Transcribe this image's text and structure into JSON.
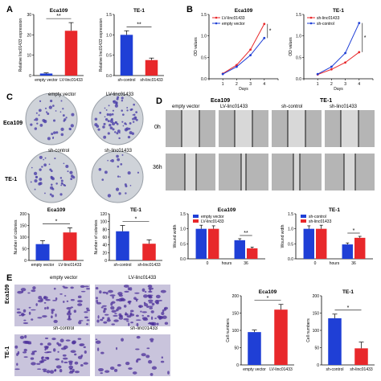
{
  "panel_letters": {
    "a": "A",
    "b": "B",
    "c": "C",
    "d": "D",
    "e": "E"
  },
  "colors": {
    "blue": "#1f3fd6",
    "red": "#e8282b",
    "photo_gray": "#b5b5b5",
    "dish": "#cfd3d9",
    "stain": "#4a3fa8"
  },
  "photo_labels": {
    "c_top_left": "empty vector",
    "c_top_right": "LV-linc01433",
    "c_row1": "Eca109",
    "c_mid_left": "sh-control",
    "c_mid_right": "sh-linc01433",
    "c_row2": "TE-1",
    "d_title_left": "Eca109",
    "d_title_right": "TE-1",
    "d_col1": "empty vector",
    "d_col2": "LV-linc01433",
    "d_col3": "sh-control",
    "d_col4": "sh-linc01433",
    "d_row1": "0h",
    "d_row2": "36h",
    "e_col1": "empty vector",
    "e_col2": "LV-linc01433",
    "e_mid1": "sh-control",
    "e_mid2": "sh-linc01433",
    "e_row1": "Eca109",
    "e_row2": "TE-1"
  },
  "chart_data": [
    {
      "id": "a1",
      "type": "bar",
      "title": "Eca109",
      "categories": [
        "empty vector",
        "LV-linc01433"
      ],
      "values": [
        1,
        22
      ],
      "errors": [
        0.3,
        4
      ],
      "colors": [
        "#1f3fd6",
        "#e8282b"
      ],
      "ylabel": "Relative linc01433 expression",
      "ylim": [
        0,
        30
      ],
      "yticks": [
        0,
        10,
        20,
        30
      ],
      "sig": "**"
    },
    {
      "id": "a2",
      "type": "bar",
      "title": "TE-1",
      "categories": [
        "sh-control",
        "sh-linc01433"
      ],
      "values": [
        1.0,
        0.38
      ],
      "errors": [
        0.1,
        0.05
      ],
      "colors": [
        "#1f3fd6",
        "#e8282b"
      ],
      "ylabel": "Relative linc01433 expression",
      "ylim": [
        0,
        1.5
      ],
      "yticks": [
        0.0,
        0.5,
        1.0,
        1.5
      ],
      "sig": "**"
    },
    {
      "id": "b1",
      "type": "line",
      "title": "Eca109",
      "x": [
        1,
        2,
        3,
        4
      ],
      "xlabel": "Days",
      "ylabel": "OD values",
      "ylim": [
        0,
        1.5
      ],
      "yticks": [
        0.0,
        0.5,
        1.0,
        1.5
      ],
      "series": [
        {
          "name": "LV-linc01433",
          "color": "#e8282b",
          "values": [
            0.12,
            0.32,
            0.68,
            1.28
          ]
        },
        {
          "name": "empty vector",
          "color": "#1f3fd6",
          "values": [
            0.11,
            0.28,
            0.55,
            0.95
          ]
        }
      ],
      "sig": "*"
    },
    {
      "id": "b2",
      "type": "line",
      "title": "TE-1",
      "x": [
        1,
        2,
        3,
        4
      ],
      "xlabel": "Days",
      "ylabel": "OD values",
      "ylim": [
        0,
        1.5
      ],
      "yticks": [
        0.0,
        0.5,
        1.0,
        1.5
      ],
      "series": [
        {
          "name": "sh-linc01433",
          "color": "#e8282b",
          "values": [
            0.1,
            0.22,
            0.38,
            0.62
          ]
        },
        {
          "name": "sh-control",
          "color": "#1f3fd6",
          "values": [
            0.11,
            0.28,
            0.6,
            1.3
          ]
        }
      ],
      "sig": "*"
    },
    {
      "id": "c1",
      "type": "bar",
      "title": "Eca109",
      "categories": [
        "empty vector",
        "LV-linc01433"
      ],
      "values": [
        70,
        120
      ],
      "errors": [
        15,
        20
      ],
      "colors": [
        "#1f3fd6",
        "#e8282b"
      ],
      "ylabel": "Number of colonies",
      "ylim": [
        0,
        200
      ],
      "yticks": [
        0,
        50,
        100,
        150,
        200
      ],
      "sig": "*"
    },
    {
      "id": "c2",
      "type": "bar",
      "title": "TE-1",
      "categories": [
        "sh-control",
        "sh-linc01433"
      ],
      "values": [
        75,
        43
      ],
      "errors": [
        15,
        10
      ],
      "colors": [
        "#1f3fd6",
        "#e8282b"
      ],
      "ylabel": "Number of colonies",
      "ylim": [
        0,
        120
      ],
      "yticks": [
        0,
        20,
        40,
        60,
        80,
        100,
        120
      ],
      "sig": "*"
    },
    {
      "id": "d1",
      "type": "bar",
      "title": "Eca109",
      "categories": [
        "0",
        "36"
      ],
      "xlabel": "hours",
      "series": [
        {
          "name": "empty vector",
          "color": "#1f3fd6",
          "values": [
            1.0,
            0.62
          ],
          "errors": [
            0.12,
            0.05
          ]
        },
        {
          "name": "LV-linc01433",
          "color": "#e8282b",
          "values": [
            1.0,
            0.35
          ],
          "errors": [
            0.1,
            0.04
          ]
        }
      ],
      "ylabel": "Wound width",
      "ylim": [
        0,
        1.5
      ],
      "yticks": [
        0.0,
        0.5,
        1.0,
        1.5
      ],
      "sig": "**"
    },
    {
      "id": "d2",
      "type": "bar",
      "title": "TE-1",
      "categories": [
        "0",
        "36"
      ],
      "xlabel": "hours",
      "series": [
        {
          "name": "sh-control",
          "color": "#1f3fd6",
          "values": [
            1.0,
            0.48
          ],
          "errors": [
            0.1,
            0.05
          ]
        },
        {
          "name": "sh-linc01433",
          "color": "#e8282b",
          "values": [
            1.0,
            0.7
          ],
          "errors": [
            0.12,
            0.05
          ]
        }
      ],
      "ylabel": "Wound width",
      "ylim": [
        0,
        1.5
      ],
      "yticks": [
        0.0,
        0.5,
        1.0,
        1.5
      ],
      "sig": "*"
    },
    {
      "id": "e1",
      "type": "bar",
      "title": "Eca109",
      "categories": [
        "empty vector",
        "LV-linc01433"
      ],
      "values": [
        95,
        160
      ],
      "errors": [
        6,
        15
      ],
      "colors": [
        "#1f3fd6",
        "#e8282b"
      ],
      "ylabel": "Cell numbers",
      "ylim": [
        0,
        200
      ],
      "yticks": [
        0,
        50,
        100,
        150,
        200
      ],
      "sig": "*"
    },
    {
      "id": "e2",
      "type": "bar",
      "title": "TE-1",
      "categories": [
        "sh-control",
        "sh-linc01433"
      ],
      "values": [
        135,
        48
      ],
      "errors": [
        12,
        18
      ],
      "colors": [
        "#1f3fd6",
        "#e8282b"
      ],
      "ylabel": "Cell numbers",
      "ylim": [
        0,
        200
      ],
      "yticks": [
        0,
        50,
        100,
        150,
        200
      ],
      "sig": "*"
    }
  ]
}
